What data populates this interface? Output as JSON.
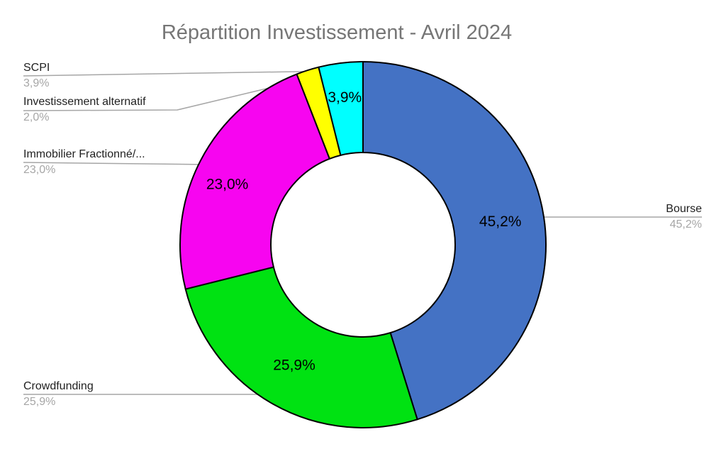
{
  "page": {
    "background": "#FFFFFF"
  },
  "chart_data": {
    "type": "pie",
    "subtype": "donut",
    "title": "Répartition Investissement - Avril 2024",
    "title_color": "#767676",
    "categories": [
      "Bourse",
      "Crowdfunding",
      "Immobilier Fractionné/...",
      "Investissement alternatif",
      "SCPI"
    ],
    "values": [
      45.2,
      25.9,
      23.0,
      2.0,
      3.9
    ],
    "slices": [
      {
        "label": "Bourse",
        "value": 45.2,
        "pct_text": "45,2%",
        "inner_label": "45,2%",
        "color": "#4472C4"
      },
      {
        "label": "Crowdfunding",
        "value": 25.9,
        "pct_text": "25,9%",
        "inner_label": "25,9%",
        "color": "#00E212"
      },
      {
        "label": "Immobilier Fractionné/...",
        "value": 23.0,
        "pct_text": "23,0%",
        "inner_label": "23,0%",
        "color": "#F705F0"
      },
      {
        "label": "Investissement alternatif",
        "value": 2.0,
        "pct_text": "2,0%",
        "inner_label": "",
        "color": "#FFFF00"
      },
      {
        "label": "SCPI",
        "value": 3.9,
        "pct_text": "3,9%",
        "inner_label": "3,9%",
        "color": "#00FFFF"
      }
    ],
    "start_angle_deg": 0,
    "direction": "clockwise",
    "inner_radius_ratio": 0.504,
    "slice_outline_color": "#000000",
    "inner_label_color": "#000000",
    "callout_name_color": "#1F1F1F",
    "callout_pct_color": "#A6A6A6",
    "leader_line_color": "#A6A6A6",
    "legend": "none",
    "grid": "off"
  }
}
